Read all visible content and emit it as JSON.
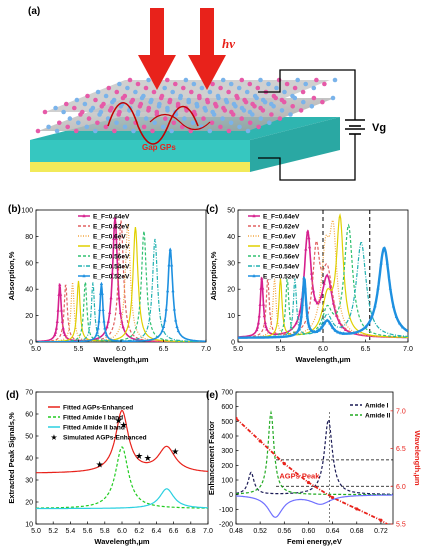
{
  "panel_a": {
    "label": "(a)",
    "light_label": "hv",
    "gap_label": "Gap GPs",
    "voltage_label": "Vg",
    "colors": {
      "arrow": "#e8221b",
      "substrate_top": "#36c7c0",
      "substrate_bottom": "#f2ea5a",
      "spacer": "#b8b8b8",
      "atom_pink": "#e65aa8",
      "atom_blue": "#7ab3ea"
    }
  },
  "chart_data": [
    {
      "id": "b",
      "label": "(b)",
      "type": "line",
      "xlabel": "Wavelength,μm",
      "ylabel": "Absorption,%",
      "xlim": [
        5.0,
        7.0
      ],
      "ylim": [
        0,
        100
      ],
      "xticks": [
        "5.0",
        "5.5",
        "6.0",
        "6.5",
        "7.0"
      ],
      "yticks": [
        "0",
        "20",
        "40",
        "60",
        "80",
        "100"
      ],
      "series": [
        {
          "name": "E_F=0.64eV",
          "color": "#d6208e",
          "style": "solid-marker",
          "peaks": [
            [
              5.28,
              43,
              0.022
            ],
            [
              5.93,
              94,
              0.035
            ]
          ]
        },
        {
          "name": "E_F=0.62eV",
          "color": "#e06060",
          "style": "dash",
          "peaks": [
            [
              5.35,
              44,
              0.022
            ],
            [
              6.0,
              92,
              0.035
            ]
          ]
        },
        {
          "name": "E_F=0.6eV",
          "color": "#f4a640",
          "style": "dot",
          "peaks": [
            [
              5.43,
              45,
              0.022
            ],
            [
              6.08,
              90,
              0.035
            ]
          ]
        },
        {
          "name": "E_F=0.58eV",
          "color": "#e0d000",
          "style": "solid",
          "peaks": [
            [
              5.5,
              46,
              0.022
            ],
            [
              6.17,
              87,
              0.035
            ]
          ]
        },
        {
          "name": "E_F=0.56eV",
          "color": "#30c070",
          "style": "dash",
          "peaks": [
            [
              5.58,
              46,
              0.022
            ],
            [
              6.27,
              84,
              0.035
            ]
          ]
        },
        {
          "name": "E_F=0.54eV",
          "color": "#20b0b0",
          "style": "dashdot",
          "peaks": [
            [
              5.67,
              45,
              0.022
            ],
            [
              6.4,
              78,
              0.035
            ]
          ]
        },
        {
          "name": "E_F=0.52eV",
          "color": "#1e90e0",
          "style": "solid-marker",
          "peaks": [
            [
              5.77,
              44,
              0.022
            ],
            [
              6.58,
              70,
              0.035
            ]
          ]
        }
      ]
    },
    {
      "id": "c",
      "label": "(c)",
      "type": "line",
      "xlabel": "Wavelength,μm",
      "ylabel": "Absorption,%",
      "xlim": [
        5.0,
        7.0
      ],
      "ylim": [
        0,
        50
      ],
      "xticks": [
        "5.0",
        "5.5",
        "6.0",
        "6.5",
        "7.0"
      ],
      "yticks": [
        "0",
        "10",
        "20",
        "30",
        "40",
        "50"
      ],
      "vlines": [
        6.0,
        6.55
      ],
      "series": [
        {
          "name": "E_F=0.64eV",
          "color": "#d6208e",
          "style": "solid-marker",
          "peaks": [
            [
              5.28,
              22,
              0.022
            ],
            [
              5.82,
              38,
              0.05
            ],
            [
              6.05,
              22,
              0.08
            ]
          ]
        },
        {
          "name": "E_F=0.62eV",
          "color": "#e06060",
          "style": "dash",
          "peaks": [
            [
              5.35,
              22,
              0.022
            ],
            [
              5.92,
              30,
              0.05
            ],
            [
              6.05,
              24,
              0.08
            ]
          ]
        },
        {
          "name": "E_F=0.6eV",
          "color": "#f4a640",
          "style": "dot",
          "peaks": [
            [
              5.43,
              22,
              0.022
            ],
            [
              6.03,
              30,
              0.06
            ],
            [
              6.12,
              35,
              0.05
            ]
          ]
        },
        {
          "name": "E_F=0.58eV",
          "color": "#e0d000",
          "style": "solid",
          "peaks": [
            [
              5.5,
              22,
              0.022
            ],
            [
              6.05,
              14,
              0.07
            ],
            [
              6.2,
              44,
              0.05
            ]
          ]
        },
        {
          "name": "E_F=0.56eV",
          "color": "#30c070",
          "style": "dash",
          "peaks": [
            [
              5.58,
              22,
              0.022
            ],
            [
              6.05,
              10,
              0.07
            ],
            [
              6.3,
              42,
              0.06
            ]
          ]
        },
        {
          "name": "E_F=0.54eV",
          "color": "#20b0b0",
          "style": "dashdot",
          "peaks": [
            [
              5.67,
              22,
              0.022
            ],
            [
              6.05,
              8,
              0.07
            ],
            [
              6.45,
              36,
              0.07
            ]
          ]
        },
        {
          "name": "E_F=0.52eV",
          "color": "#1e90e0",
          "style": "solid-marker",
          "peaks": [
            [
              5.78,
              22,
              0.025
            ],
            [
              6.05,
              6,
              0.07
            ],
            [
              6.72,
              34,
              0.08
            ]
          ]
        }
      ]
    },
    {
      "id": "d",
      "label": "(d)",
      "type": "line",
      "xlabel": "Wavelength,μm",
      "ylabel": "Extracted Peak Signals,%",
      "xlim": [
        5.0,
        7.0
      ],
      "ylim": [
        10,
        70
      ],
      "xticks": [
        "5.0",
        "5.2",
        "5.4",
        "5.6",
        "5.8",
        "6.0",
        "6.2",
        "6.4",
        "6.6",
        "6.8",
        "7.0"
      ],
      "yticks": [
        "10",
        "20",
        "30",
        "40",
        "50",
        "60",
        "70"
      ],
      "series": [
        {
          "name": "Fitted AGPs-Enhanced",
          "color": "#e8221b",
          "style": "solid",
          "baseline": 33,
          "peaks": [
            [
              6.0,
              28,
              0.09
            ],
            [
              6.52,
              11.5,
              0.12
            ]
          ]
        },
        {
          "name": "Fitted Amide I band",
          "color": "#22cc22",
          "style": "dash",
          "baseline": 17,
          "peaks": [
            [
              6.0,
              28,
              0.09
            ]
          ]
        },
        {
          "name": "Fitted Amide II band",
          "color": "#2ad0e0",
          "style": "solid",
          "baseline": 17,
          "peaks": [
            [
              6.52,
              9,
              0.1
            ]
          ]
        },
        {
          "name": "Simulated AGPs-Enhanced",
          "color": "#000000",
          "style": "star",
          "points": [
            [
              5.74,
              37
            ],
            [
              5.96,
              57
            ],
            [
              6.02,
              55
            ],
            [
              6.2,
              41
            ],
            [
              6.3,
              40
            ],
            [
              6.62,
              43
            ]
          ]
        }
      ]
    },
    {
      "id": "e",
      "label": "(e)",
      "type": "line",
      "xlabel": "Femi energy,eV",
      "ylabel": "Enhancement Factor",
      "y2label": "Wavelength,μm",
      "xlim": [
        0.48,
        0.74
      ],
      "ylim": [
        -200,
        700
      ],
      "y2lim": [
        5.5,
        7.25
      ],
      "xticks": [
        "0.48",
        "0.52",
        "0.56",
        "0.60",
        "0.64",
        "0.68",
        "0.72"
      ],
      "yticks": [
        "-200",
        "-100",
        "0",
        "100",
        "200",
        "300",
        "400",
        "500",
        "600",
        "700"
      ],
      "y2ticks": [
        "5.5",
        "6.0",
        "6.5",
        "7.0"
      ],
      "annotation": "AGPs Peak",
      "series": [
        {
          "name": "Amide I",
          "color": "#1a1a55",
          "style": "dash",
          "peaks": [
            [
              0.505,
              150,
              0.006
            ],
            [
              0.633,
              510,
              0.008
            ]
          ]
        },
        {
          "name": "Amide II",
          "color": "#22aa22",
          "style": "dash",
          "peaks": [
            [
              0.538,
              560,
              0.006
            ]
          ]
        },
        {
          "name": "AGPs Peak",
          "color": "#e8221b",
          "style": "dashdot-marker",
          "axis": "right",
          "points": [
            [
              0.48,
              6.9
            ],
            [
              0.52,
              6.6
            ],
            [
              0.56,
              6.3
            ],
            [
              0.6,
              6.05
            ],
            [
              0.64,
              5.85
            ],
            [
              0.68,
              5.7
            ],
            [
              0.72,
              5.55
            ],
            [
              0.74,
              5.45
            ]
          ]
        },
        {
          "name": "",
          "color": "#7070ff",
          "style": "solid",
          "baseline": 0,
          "peaks": [
            [
              0.545,
              -150,
              0.015
            ],
            [
              0.62,
              -60,
              0.02
            ]
          ]
        }
      ],
      "hlines": [
        0.635,
        6.35
      ]
    }
  ]
}
